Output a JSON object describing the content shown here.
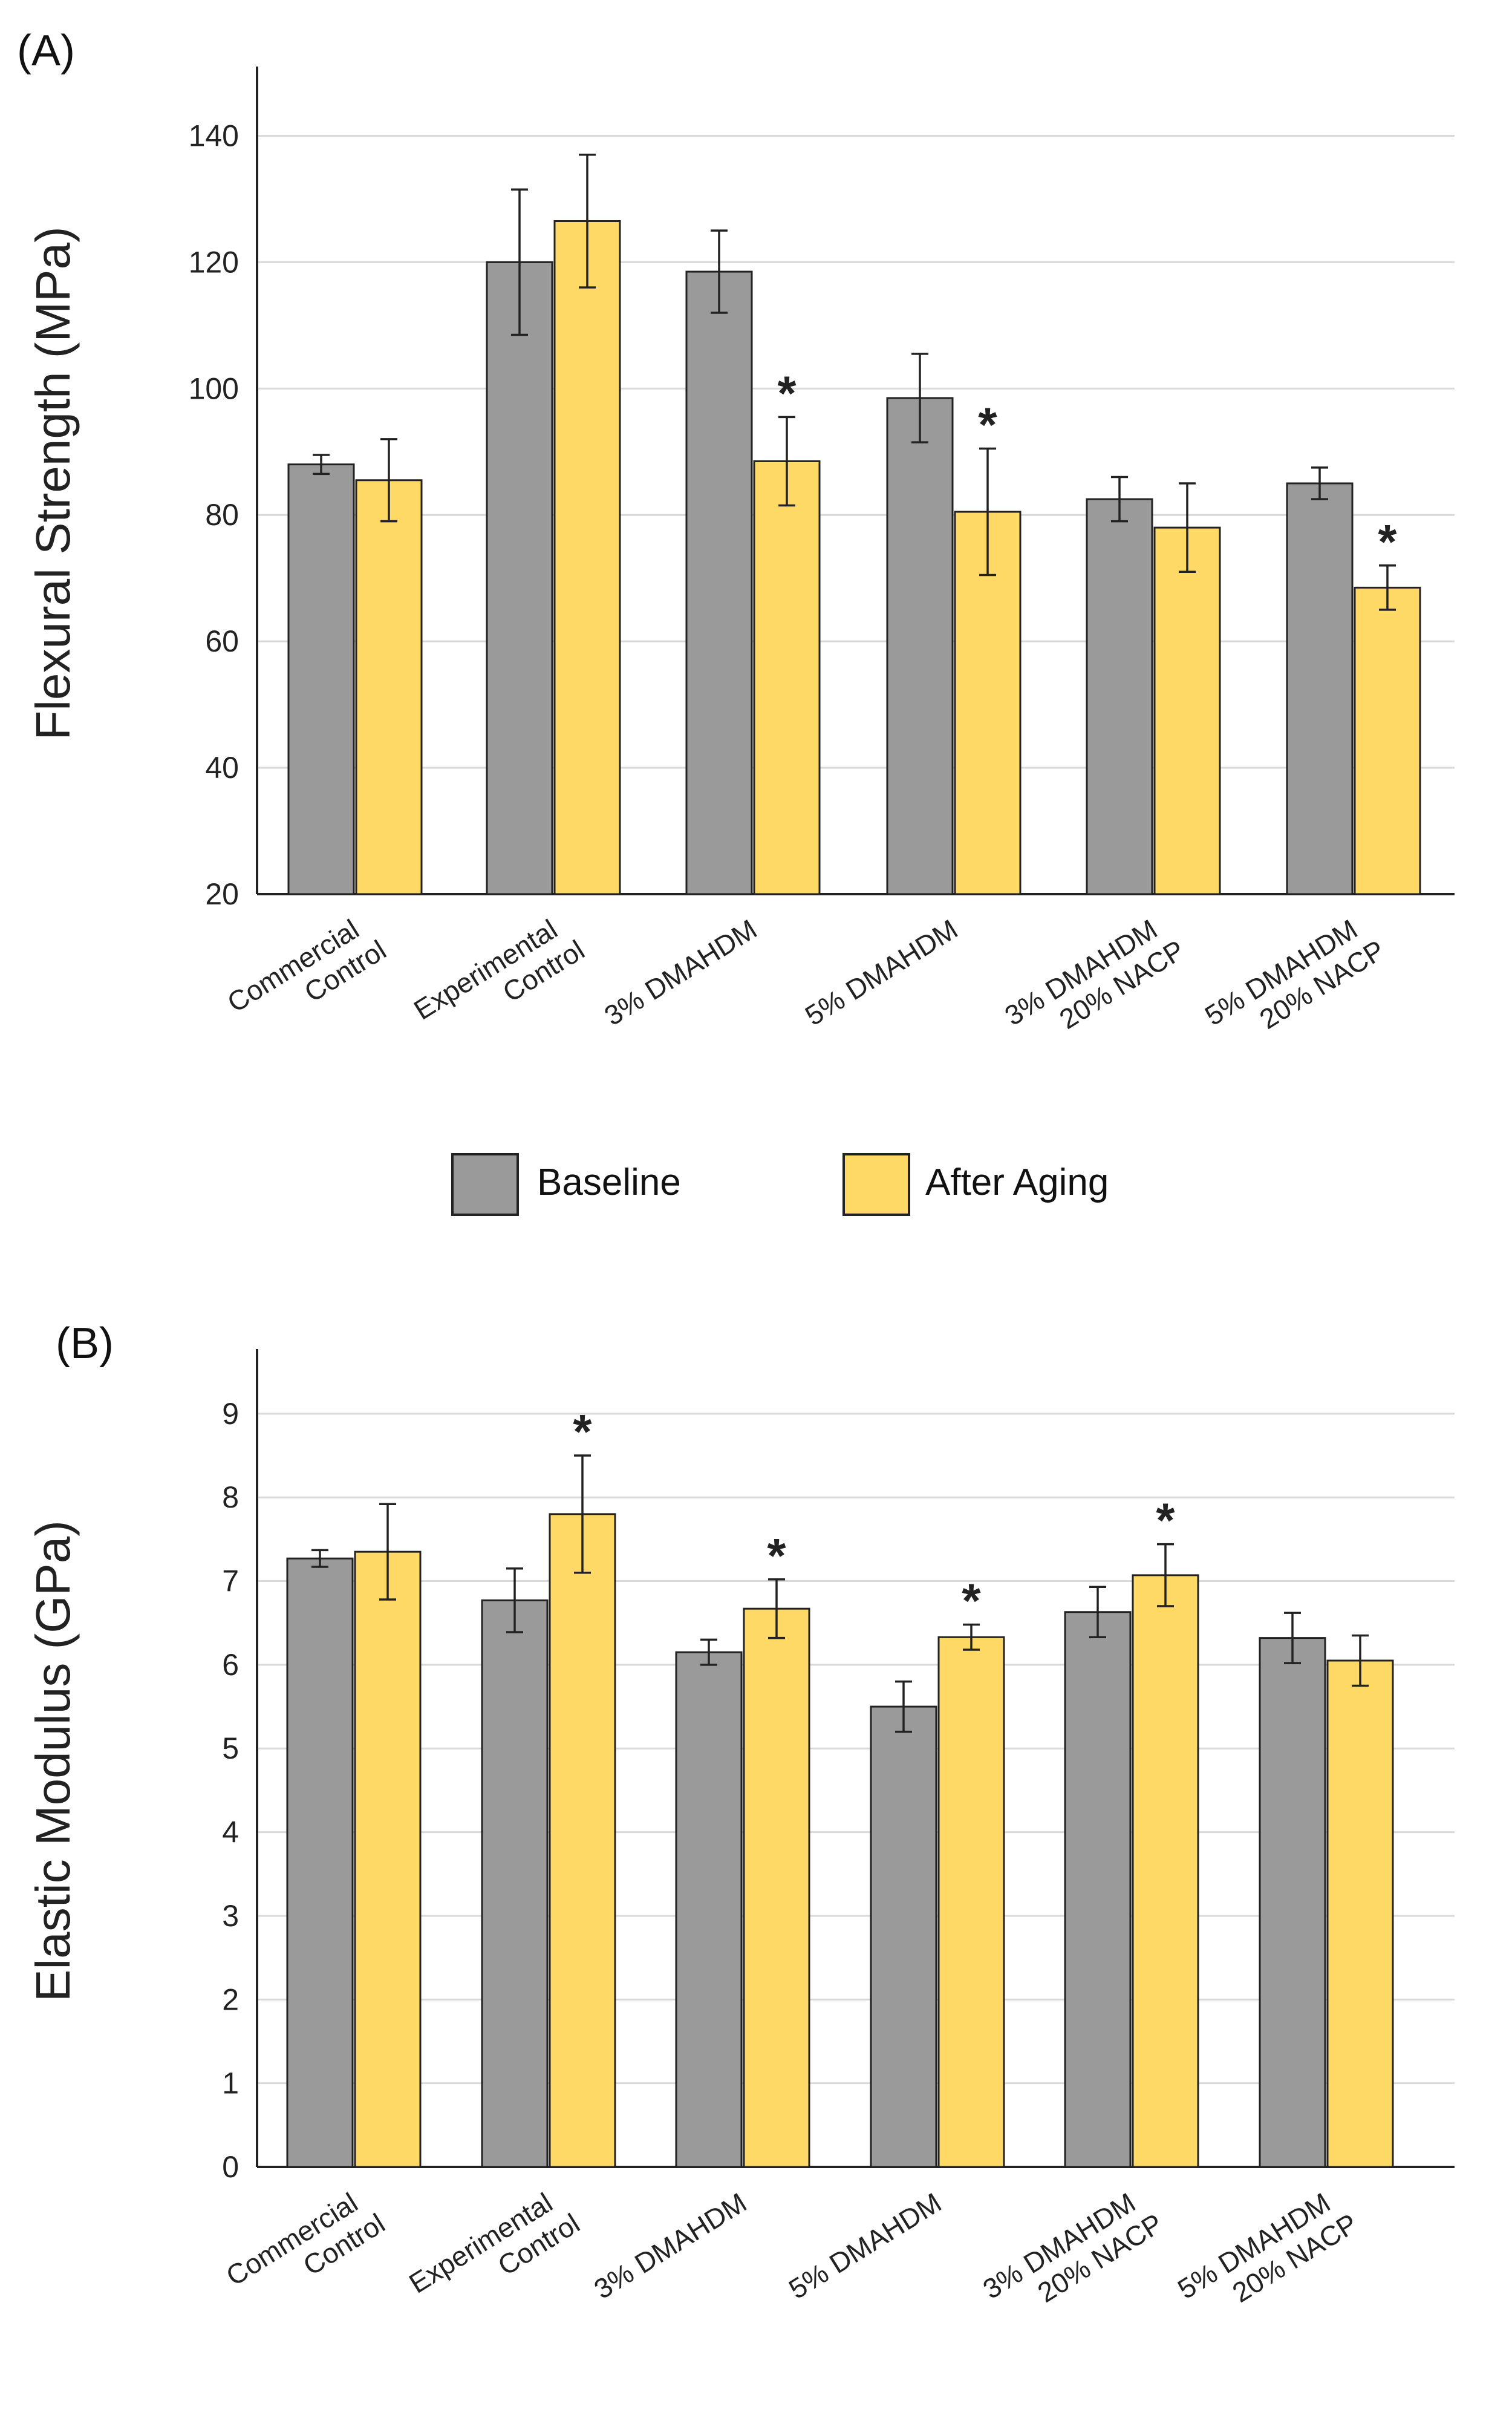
{
  "colors": {
    "baseline": "#9a9a9a",
    "after_aging": "#ffd966",
    "bar_stroke": "#222222",
    "grid": "#d9d9d9",
    "axis": "#222222"
  },
  "legend": {
    "baseline_label": "Baseline",
    "after_aging_label": "After Aging"
  },
  "chart_data": [
    {
      "panel_label": "(A)",
      "type": "bar",
      "ylabel": "Flexural Strength (MPa)",
      "ylim": [
        20,
        150
      ],
      "yticks": [
        20,
        40,
        60,
        80,
        100,
        120,
        140
      ],
      "grid": true,
      "categories": [
        [
          "Commercial",
          "Control"
        ],
        [
          "Experimental",
          "Control"
        ],
        [
          "3% DMAHDM"
        ],
        [
          "5% DMAHDM"
        ],
        [
          "3% DMAHDM",
          "20% NACP"
        ],
        [
          "5% DMAHDM",
          "20% NACP"
        ]
      ],
      "series": [
        {
          "name": "Baseline",
          "values": [
            88,
            120,
            118.5,
            98.5,
            82.5,
            85
          ],
          "errors": [
            1.5,
            11.5,
            6.5,
            7,
            3.5,
            2.5
          ],
          "significant": [
            false,
            false,
            false,
            false,
            false,
            false
          ]
        },
        {
          "name": "After Aging",
          "values": [
            85.5,
            126.5,
            88.5,
            80.5,
            78,
            68.5
          ],
          "errors": [
            6.5,
            10.5,
            7,
            10,
            7,
            3.5
          ],
          "significant": [
            false,
            false,
            true,
            true,
            false,
            true
          ]
        }
      ],
      "significance_marker": "*"
    },
    {
      "panel_label": "(B)",
      "type": "bar",
      "ylabel": "Elastic Modulus (GPa)",
      "ylim": [
        0,
        9.7
      ],
      "yticks": [
        0,
        1,
        2,
        3,
        4,
        5,
        6,
        7,
        8,
        9
      ],
      "grid": true,
      "categories": [
        [
          "Commercial",
          "Control"
        ],
        [
          "Experimental",
          "Control"
        ],
        [
          "3% DMAHDM"
        ],
        [
          "5% DMAHDM"
        ],
        [
          "3% DMAHDM",
          "20% NACP"
        ],
        [
          "5% DMAHDM",
          "20% NACP"
        ]
      ],
      "series": [
        {
          "name": "Baseline",
          "values": [
            7.27,
            6.77,
            6.15,
            5.5,
            6.63,
            6.32
          ],
          "errors": [
            0.1,
            0.38,
            0.15,
            0.3,
            0.3,
            0.3
          ],
          "significant": [
            false,
            false,
            false,
            false,
            false,
            false
          ]
        },
        {
          "name": "After Aging",
          "values": [
            7.35,
            7.8,
            6.67,
            6.33,
            7.07,
            6.05
          ],
          "errors": [
            0.57,
            0.7,
            0.35,
            0.15,
            0.37,
            0.3
          ],
          "significant": [
            false,
            true,
            true,
            true,
            true,
            false
          ]
        }
      ],
      "significance_marker": "*"
    }
  ]
}
